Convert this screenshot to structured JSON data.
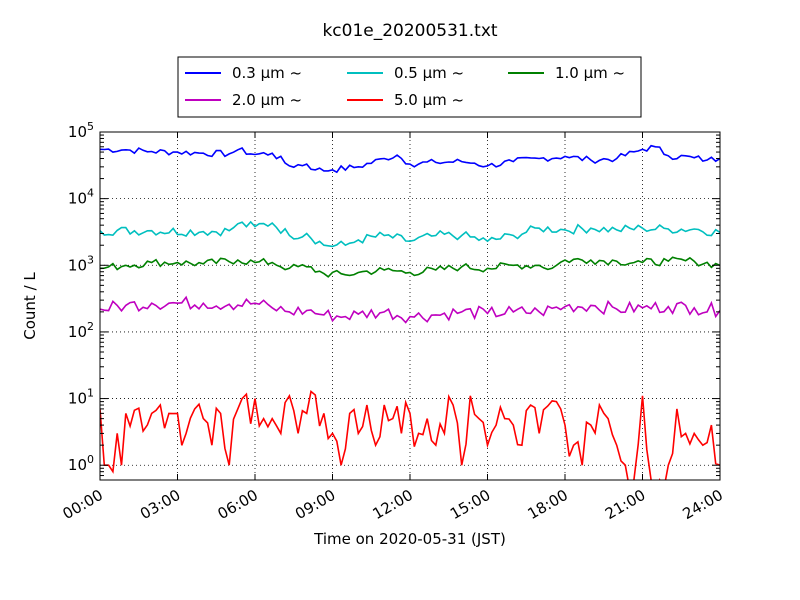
{
  "chart_data": {
    "type": "line",
    "title": "kc01e_20200531.txt",
    "xlabel": "Time on 2020-05-31 (JST)",
    "ylabel": "Count / L",
    "y_scale": "log",
    "ylim": [
      0.6,
      100000
    ],
    "xlim": [
      "2020-05-31 00:00",
      "2020-06-01 00:00"
    ],
    "x_tick_labels": [
      "00:00",
      "03:00",
      "06:00",
      "09:00",
      "12:00",
      "15:00",
      "18:00",
      "21:00",
      "24:00"
    ],
    "y_tick_labels": [
      {
        "base": "10",
        "exp": "0"
      },
      {
        "base": "10",
        "exp": "1"
      },
      {
        "base": "10",
        "exp": "2"
      },
      {
        "base": "10",
        "exp": "3"
      },
      {
        "base": "10",
        "exp": "4"
      },
      {
        "base": "10",
        "exp": "5"
      }
    ],
    "grid": true,
    "legend_position": "top-center",
    "sample_interval": "10 min",
    "series": [
      {
        "name": "0.3 μm ~",
        "color": "#0000ff",
        "knots": [
          [
            "00:00",
            55000
          ],
          [
            "01:00",
            54000
          ],
          [
            "02:00",
            51000
          ],
          [
            "03:00",
            50000
          ],
          [
            "04:00",
            48000
          ],
          [
            "05:00",
            47000
          ],
          [
            "05:20",
            54000
          ],
          [
            "06:00",
            46000
          ],
          [
            "06:40",
            48000
          ],
          [
            "07:20",
            31000
          ],
          [
            "08:00",
            33000
          ],
          [
            "08:20",
            27000
          ],
          [
            "09:00",
            27000
          ],
          [
            "10:00",
            30000
          ],
          [
            "11:00",
            40000
          ],
          [
            "11:30",
            45000
          ],
          [
            "12:00",
            33000
          ],
          [
            "13:00",
            35000
          ],
          [
            "14:00",
            36000
          ],
          [
            "14:30",
            34000
          ],
          [
            "15:00",
            31000
          ],
          [
            "16:00",
            36000
          ],
          [
            "17:00",
            40000
          ],
          [
            "18:00",
            43000
          ],
          [
            "19:00",
            38000
          ],
          [
            "20:00",
            40000
          ],
          [
            "21:00",
            55000
          ],
          [
            "21:30",
            60000
          ],
          [
            "22:00",
            44000
          ],
          [
            "23:00",
            41000
          ],
          [
            "23:30",
            38000
          ],
          [
            "24:00",
            40000
          ]
        ],
        "amp": 0.05
      },
      {
        "name": "0.5 μm ~",
        "color": "#00bfbf",
        "knots": [
          [
            "00:00",
            3300
          ],
          [
            "02:00",
            3300
          ],
          [
            "04:00",
            3200
          ],
          [
            "05:00",
            3300
          ],
          [
            "05:20",
            4200
          ],
          [
            "06:00",
            3800
          ],
          [
            "06:40",
            4300
          ],
          [
            "07:20",
            2800
          ],
          [
            "08:00",
            3000
          ],
          [
            "08:40",
            2000
          ],
          [
            "09:30",
            2000
          ],
          [
            "10:00",
            2400
          ],
          [
            "11:00",
            2800
          ],
          [
            "12:00",
            2300
          ],
          [
            "13:00",
            2800
          ],
          [
            "14:00",
            2800
          ],
          [
            "15:00",
            2300
          ],
          [
            "16:00",
            2800
          ],
          [
            "17:00",
            3600
          ],
          [
            "18:00",
            3400
          ],
          [
            "19:00",
            3600
          ],
          [
            "20:00",
            3400
          ],
          [
            "21:00",
            3600
          ],
          [
            "22:00",
            3500
          ],
          [
            "23:00",
            3500
          ],
          [
            "24:00",
            3100
          ]
        ],
        "amp": 0.07
      },
      {
        "name": "1.0 μm ~",
        "color": "#008000",
        "knots": [
          [
            "00:00",
            900
          ],
          [
            "01:00",
            1000
          ],
          [
            "02:00",
            1100
          ],
          [
            "03:00",
            1100
          ],
          [
            "04:00",
            1050
          ],
          [
            "05:20",
            1200
          ],
          [
            "06:00",
            1100
          ],
          [
            "06:40",
            1100
          ],
          [
            "07:20",
            900
          ],
          [
            "08:00",
            950
          ],
          [
            "08:40",
            750
          ],
          [
            "09:30",
            720
          ],
          [
            "10:00",
            780
          ],
          [
            "11:00",
            850
          ],
          [
            "12:00",
            780
          ],
          [
            "13:00",
            850
          ],
          [
            "14:00",
            950
          ],
          [
            "15:00",
            900
          ],
          [
            "16:00",
            1000
          ],
          [
            "17:00",
            1000
          ],
          [
            "17:30",
            900
          ],
          [
            "18:00",
            1200
          ],
          [
            "19:00",
            1200
          ],
          [
            "20:00",
            1150
          ],
          [
            "21:00",
            1100
          ],
          [
            "22:00",
            1150
          ],
          [
            "23:00",
            1150
          ],
          [
            "24:00",
            1000
          ]
        ],
        "amp": 0.06
      },
      {
        "name": "2.0 μm ~",
        "color": "#bf00bf",
        "knots": [
          [
            "00:00",
            220
          ],
          [
            "01:00",
            250
          ],
          [
            "02:00",
            270
          ],
          [
            "03:00",
            270
          ],
          [
            "04:00",
            270
          ],
          [
            "05:00",
            260
          ],
          [
            "06:00",
            270
          ],
          [
            "06:40",
            230
          ],
          [
            "07:20",
            200
          ],
          [
            "08:00",
            210
          ],
          [
            "08:40",
            180
          ],
          [
            "09:30",
            170
          ],
          [
            "10:00",
            185
          ],
          [
            "11:00",
            200
          ],
          [
            "12:00",
            170
          ],
          [
            "13:00",
            180
          ],
          [
            "14:00",
            200
          ],
          [
            "15:00",
            190
          ],
          [
            "16:00",
            200
          ],
          [
            "17:00",
            200
          ],
          [
            "18:00",
            240
          ],
          [
            "19:00",
            250
          ],
          [
            "20:00",
            220
          ],
          [
            "21:00",
            230
          ],
          [
            "22:00",
            240
          ],
          [
            "23:00",
            230
          ],
          [
            "24:00",
            210
          ]
        ],
        "amp": 0.1
      },
      {
        "name": "5.0 μm ~",
        "color": "#ff0000",
        "knots": [
          [
            "00:00",
            7
          ],
          [
            "00:10",
            1
          ],
          [
            "00:20",
            1
          ],
          [
            "00:40",
            3
          ],
          [
            "00:50",
            1
          ],
          [
            "01:00",
            6
          ],
          [
            "02:00",
            6
          ],
          [
            "02:20",
            8
          ],
          [
            "02:40",
            6
          ],
          [
            "03:00",
            6
          ],
          [
            "03:20",
            3
          ],
          [
            "03:40",
            7
          ],
          [
            "04:00",
            5
          ],
          [
            "04:20",
            2
          ],
          [
            "04:40",
            6
          ],
          [
            "05:00",
            1
          ],
          [
            "05:20",
            7
          ],
          [
            "06:00",
            10
          ],
          [
            "06:20",
            5
          ],
          [
            "06:40",
            5
          ],
          [
            "07:00",
            3
          ],
          [
            "07:20",
            11
          ],
          [
            "07:40",
            3
          ],
          [
            "08:00",
            6
          ],
          [
            "08:40",
            6
          ],
          [
            "09:00",
            3
          ],
          [
            "09:20",
            1
          ],
          [
            "09:40",
            6
          ],
          [
            "10:00",
            3
          ],
          [
            "10:20",
            8
          ],
          [
            "10:40",
            2
          ],
          [
            "11:00",
            8
          ],
          [
            "11:20",
            5
          ],
          [
            "11:40",
            3
          ],
          [
            "12:00",
            6
          ],
          [
            "12:20",
            3
          ],
          [
            "12:40",
            5
          ],
          [
            "13:00",
            2
          ],
          [
            "13:20",
            3
          ],
          [
            "13:40",
            8
          ],
          [
            "14:00",
            1
          ],
          [
            "14:20",
            11
          ],
          [
            "14:40",
            5
          ],
          [
            "15:00",
            2
          ],
          [
            "15:20",
            4
          ],
          [
            "15:40",
            5
          ],
          [
            "16:00",
            4
          ],
          [
            "16:20",
            2
          ],
          [
            "16:40",
            8
          ],
          [
            "17:00",
            3
          ],
          [
            "17:40",
            9
          ],
          [
            "18:00",
            4
          ],
          [
            "18:20",
            2
          ],
          [
            "18:40",
            1
          ],
          [
            "19:00",
            4
          ],
          [
            "19:20",
            8
          ],
          [
            "19:40",
            5
          ],
          [
            "20:00",
            2
          ],
          [
            "20:20",
            1
          ],
          [
            "20:40",
            0.6
          ],
          [
            "21:00",
            11
          ],
          [
            "21:20",
            0.6
          ],
          [
            "21:40",
            0.6
          ],
          [
            "22:00",
            1
          ],
          [
            "22:20",
            7
          ],
          [
            "22:40",
            3
          ],
          [
            "23:00",
            3
          ],
          [
            "23:20",
            2
          ],
          [
            "23:40",
            4
          ],
          [
            "24:00",
            1
          ]
        ],
        "amp": 0.35
      }
    ]
  }
}
